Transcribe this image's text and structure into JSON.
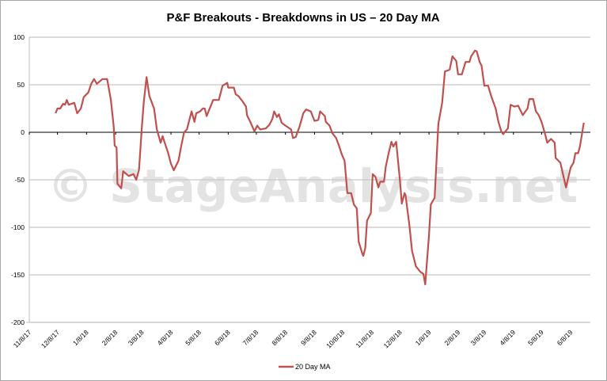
{
  "chart_data": {
    "type": "line",
    "title": "P&F Breakouts - Breakdowns in US – 20 Day MA",
    "xlabel": "",
    "ylabel": "",
    "ylim": [
      -200,
      100
    ],
    "yticks": [
      100,
      50,
      0,
      -50,
      -100,
      -150,
      -200
    ],
    "xlim": [
      "2017-11-08",
      "2019-06-29"
    ],
    "xticks": [
      {
        "date": "2017-11-08",
        "label": "11/8/17"
      },
      {
        "date": "2017-12-08",
        "label": "12/8/17"
      },
      {
        "date": "2018-01-08",
        "label": "1/8/18"
      },
      {
        "date": "2018-02-08",
        "label": "2/8/18"
      },
      {
        "date": "2018-03-08",
        "label": "3/8/18"
      },
      {
        "date": "2018-04-08",
        "label": "4/8/18"
      },
      {
        "date": "2018-05-08",
        "label": "5/8/18"
      },
      {
        "date": "2018-06-08",
        "label": "6/8/18"
      },
      {
        "date": "2018-07-08",
        "label": "7/8/18"
      },
      {
        "date": "2018-08-08",
        "label": "8/8/18"
      },
      {
        "date": "2018-09-08",
        "label": "9/8/18"
      },
      {
        "date": "2018-10-08",
        "label": "10/8/18"
      },
      {
        "date": "2018-11-08",
        "label": "11/8/18"
      },
      {
        "date": "2018-12-08",
        "label": "12/8/18"
      },
      {
        "date": "2019-01-08",
        "label": "1/8/19"
      },
      {
        "date": "2019-02-08",
        "label": "2/8/19"
      },
      {
        "date": "2019-03-08",
        "label": "3/8/19"
      },
      {
        "date": "2019-04-08",
        "label": "4/8/19"
      },
      {
        "date": "2019-05-08",
        "label": "5/8/19"
      },
      {
        "date": "2019-06-08",
        "label": "6/8/19"
      }
    ],
    "grid": true,
    "legend_position": "bottom",
    "watermark": "© StageAnalysis.net",
    "series": [
      {
        "name": "20 Day MA",
        "color": "#c0504d",
        "points": [
          [
            "2017-12-06",
            20
          ],
          [
            "2017-12-08",
            25
          ],
          [
            "2017-12-11",
            25
          ],
          [
            "2017-12-14",
            30
          ],
          [
            "2017-12-16",
            29
          ],
          [
            "2017-12-18",
            34
          ],
          [
            "2017-12-20",
            29
          ],
          [
            "2017-12-26",
            31
          ],
          [
            "2017-12-29",
            20
          ],
          [
            "2018-01-02",
            25
          ],
          [
            "2018-01-05",
            37
          ],
          [
            "2018-01-10",
            42
          ],
          [
            "2018-01-13",
            51
          ],
          [
            "2018-01-16",
            56
          ],
          [
            "2018-01-19",
            51
          ],
          [
            "2018-01-25",
            56
          ],
          [
            "2018-01-30",
            56
          ],
          [
            "2018-02-03",
            34
          ],
          [
            "2018-02-06",
            6
          ],
          [
            "2018-02-07",
            -14
          ],
          [
            "2018-02-09",
            -16
          ],
          [
            "2018-02-10",
            -54
          ],
          [
            "2018-02-14",
            -59
          ],
          [
            "2018-02-16",
            -41
          ],
          [
            "2018-02-22",
            -46
          ],
          [
            "2018-02-27",
            -44
          ],
          [
            "2018-03-02",
            -50
          ],
          [
            "2018-03-05",
            -39
          ],
          [
            "2018-03-08",
            6
          ],
          [
            "2018-03-10",
            31
          ],
          [
            "2018-03-13",
            58
          ],
          [
            "2018-03-16",
            38
          ],
          [
            "2018-03-21",
            25
          ],
          [
            "2018-03-24",
            3
          ],
          [
            "2018-03-28",
            -11
          ],
          [
            "2018-03-30",
            -4
          ],
          [
            "2018-04-05",
            -22
          ],
          [
            "2018-04-08",
            -33
          ],
          [
            "2018-04-11",
            -40
          ],
          [
            "2018-04-16",
            -30
          ],
          [
            "2018-04-19",
            -14
          ],
          [
            "2018-04-22",
            0
          ],
          [
            "2018-04-25",
            3
          ],
          [
            "2018-04-30",
            22
          ],
          [
            "2018-05-03",
            11
          ],
          [
            "2018-05-05",
            20
          ],
          [
            "2018-05-09",
            22
          ],
          [
            "2018-05-12",
            25
          ],
          [
            "2018-05-14",
            25
          ],
          [
            "2018-05-16",
            17
          ],
          [
            "2018-05-23",
            34
          ],
          [
            "2018-05-29",
            34
          ],
          [
            "2018-06-02",
            49
          ],
          [
            "2018-06-07",
            52
          ],
          [
            "2018-06-08",
            47
          ],
          [
            "2018-06-14",
            47
          ],
          [
            "2018-06-16",
            40
          ],
          [
            "2018-06-19",
            38
          ],
          [
            "2018-06-23",
            33
          ],
          [
            "2018-06-27",
            27
          ],
          [
            "2018-06-28",
            18
          ],
          [
            "2018-07-02",
            10
          ],
          [
            "2018-07-06",
            1
          ],
          [
            "2018-07-09",
            7
          ],
          [
            "2018-07-12",
            3
          ],
          [
            "2018-07-18",
            4
          ],
          [
            "2018-07-22",
            8
          ],
          [
            "2018-07-25",
            14
          ],
          [
            "2018-07-27",
            22
          ],
          [
            "2018-07-30",
            16
          ],
          [
            "2018-08-01",
            19
          ],
          [
            "2018-08-04",
            10
          ],
          [
            "2018-08-08",
            7
          ],
          [
            "2018-08-14",
            3
          ],
          [
            "2018-08-16",
            -6
          ],
          [
            "2018-08-19",
            -5
          ],
          [
            "2018-08-23",
            6
          ],
          [
            "2018-08-27",
            20
          ],
          [
            "2018-08-30",
            24
          ],
          [
            "2018-09-04",
            22
          ],
          [
            "2018-09-08",
            12
          ],
          [
            "2018-09-12",
            13
          ],
          [
            "2018-09-14",
            22
          ],
          [
            "2018-09-19",
            17
          ],
          [
            "2018-09-20",
            11
          ],
          [
            "2018-09-24",
            7
          ],
          [
            "2018-09-27",
            -1
          ],
          [
            "2018-10-01",
            -6
          ],
          [
            "2018-10-04",
            -14
          ],
          [
            "2018-10-07",
            -23
          ],
          [
            "2018-10-10",
            -30
          ],
          [
            "2018-10-13",
            -64
          ],
          [
            "2018-10-17",
            -64
          ],
          [
            "2018-10-20",
            -76
          ],
          [
            "2018-10-23",
            -80
          ],
          [
            "2018-10-25",
            -115
          ],
          [
            "2018-10-29",
            -128
          ],
          [
            "2018-10-30",
            -130
          ],
          [
            "2018-11-01",
            -122
          ],
          [
            "2018-11-03",
            -93
          ],
          [
            "2018-11-07",
            -85
          ],
          [
            "2018-11-09",
            -44
          ],
          [
            "2018-11-12",
            -47
          ],
          [
            "2018-11-15",
            -58
          ],
          [
            "2018-11-17",
            -52
          ],
          [
            "2018-11-21",
            -52
          ],
          [
            "2018-11-23",
            -36
          ],
          [
            "2018-11-26",
            -22
          ],
          [
            "2018-11-29",
            -10
          ],
          [
            "2018-12-01",
            -15
          ],
          [
            "2018-12-04",
            -10
          ],
          [
            "2018-12-08",
            -50
          ],
          [
            "2018-12-10",
            -75
          ],
          [
            "2018-12-13",
            -64
          ],
          [
            "2018-12-14",
            -66
          ],
          [
            "2018-12-18",
            -97
          ],
          [
            "2018-12-21",
            -125
          ],
          [
            "2018-12-25",
            -141
          ],
          [
            "2018-12-30",
            -147
          ],
          [
            "2019-01-02",
            -149
          ],
          [
            "2019-01-04",
            -160
          ],
          [
            "2019-01-08",
            -108
          ],
          [
            "2019-01-10",
            -76
          ],
          [
            "2019-01-14",
            -69
          ],
          [
            "2019-01-18",
            9
          ],
          [
            "2019-01-22",
            31
          ],
          [
            "2019-01-25",
            64
          ],
          [
            "2019-01-28",
            65
          ],
          [
            "2019-01-30",
            66
          ],
          [
            "2019-02-02",
            80
          ],
          [
            "2019-02-06",
            75
          ],
          [
            "2019-02-08",
            61
          ],
          [
            "2019-02-12",
            61
          ],
          [
            "2019-02-16",
            74
          ],
          [
            "2019-02-20",
            74
          ],
          [
            "2019-02-22",
            80
          ],
          [
            "2019-02-26",
            86
          ],
          [
            "2019-02-28",
            85
          ],
          [
            "2019-03-03",
            74
          ],
          [
            "2019-03-05",
            70
          ],
          [
            "2019-03-08",
            49
          ],
          [
            "2019-03-12",
            49
          ],
          [
            "2019-03-15",
            39
          ],
          [
            "2019-03-20",
            25
          ],
          [
            "2019-03-23",
            11
          ],
          [
            "2019-03-26",
            1
          ],
          [
            "2019-03-28",
            -2
          ],
          [
            "2019-04-02",
            4
          ],
          [
            "2019-04-05",
            29
          ],
          [
            "2019-04-09",
            27
          ],
          [
            "2019-04-13",
            28
          ],
          [
            "2019-04-18",
            18
          ],
          [
            "2019-04-23",
            25
          ],
          [
            "2019-04-25",
            35
          ],
          [
            "2019-04-29",
            35
          ],
          [
            "2019-05-02",
            22
          ],
          [
            "2019-05-05",
            18
          ],
          [
            "2019-05-08",
            11
          ],
          [
            "2019-05-12",
            -3
          ],
          [
            "2019-05-14",
            -11
          ],
          [
            "2019-05-18",
            -7
          ],
          [
            "2019-05-22",
            -11
          ],
          [
            "2019-05-23",
            -27
          ],
          [
            "2019-05-28",
            -32
          ],
          [
            "2019-06-03",
            -58
          ],
          [
            "2019-06-08",
            -37
          ],
          [
            "2019-06-11",
            -32
          ],
          [
            "2019-06-13",
            -22
          ],
          [
            "2019-06-16",
            -22
          ],
          [
            "2019-06-18",
            -14
          ],
          [
            "2019-06-22",
            10
          ]
        ]
      }
    ]
  }
}
